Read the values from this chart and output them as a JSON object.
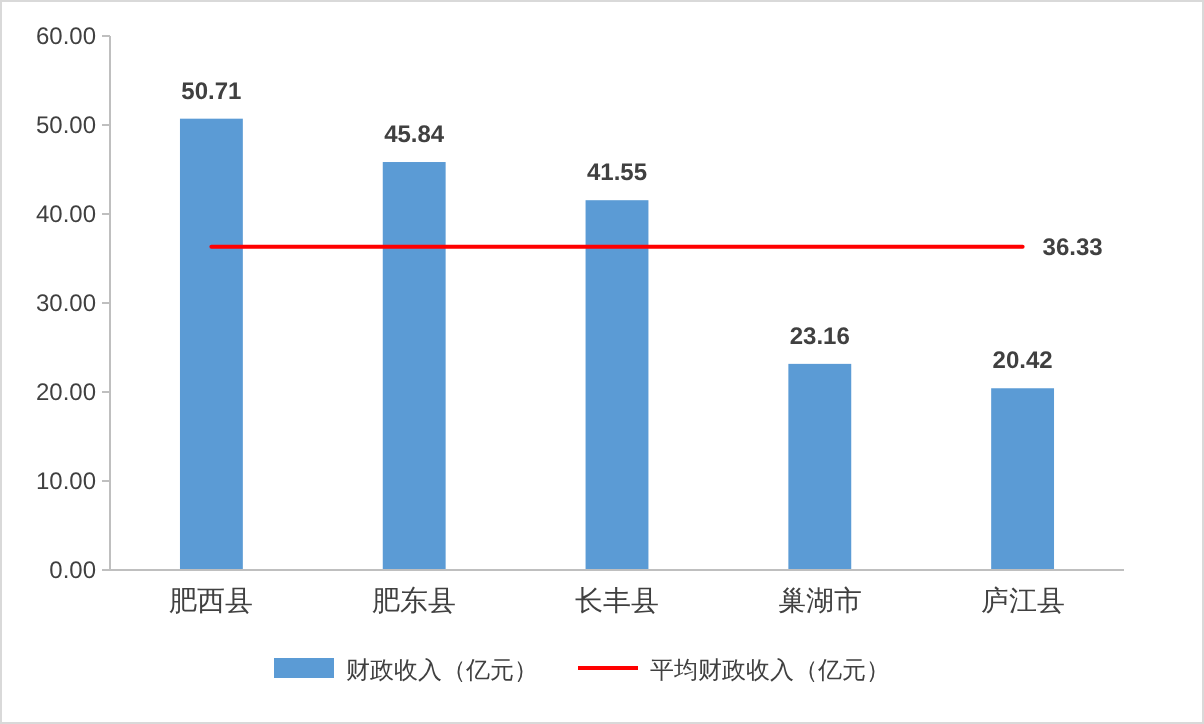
{
  "chart_data": {
    "type": "bar",
    "categories": [
      "肥西县",
      "肥东县",
      "长丰县",
      "巢湖市",
      "庐江县"
    ],
    "series": [
      {
        "name": "财政收入（亿元）",
        "color": "#5b9bd5",
        "values": [
          50.71,
          45.84,
          41.55,
          23.16,
          20.42
        ]
      },
      {
        "name": "平均财政收入（亿元）",
        "type": "line",
        "color": "#ff0000",
        "values": [
          36.33,
          36.33,
          36.33,
          36.33,
          36.33
        ],
        "value_labels": [
          null,
          null,
          null,
          null,
          "36.33"
        ]
      }
    ],
    "ylim": [
      0,
      60
    ],
    "yticks": [
      {
        "value": 0,
        "label": "0.00"
      },
      {
        "value": 10,
        "label": "10.00"
      },
      {
        "value": 20,
        "label": "20.00"
      },
      {
        "value": 30,
        "label": "30.00"
      },
      {
        "value": 40,
        "label": "40.00"
      },
      {
        "value": 50,
        "label": "50.00"
      },
      {
        "value": 60,
        "label": "60.00"
      }
    ],
    "data_labels": true,
    "grid": false,
    "legend": "bottom"
  }
}
